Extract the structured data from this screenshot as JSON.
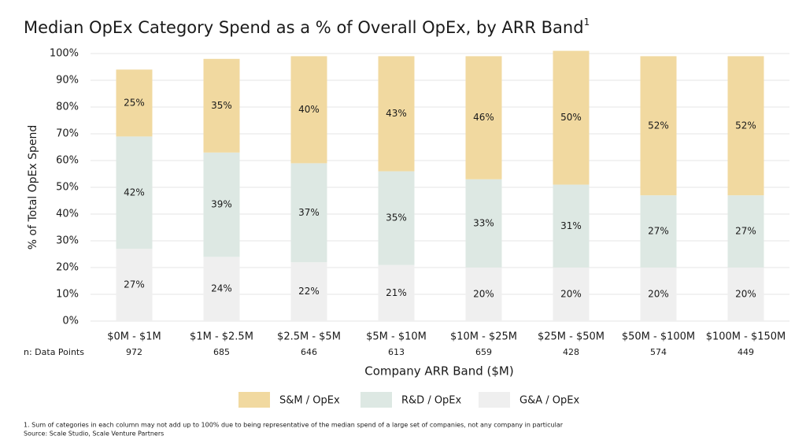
{
  "chart_data": {
    "type": "stacked_bar",
    "title": "Median OpEx Category Spend as a % of Overall OpEx, by ARR Band",
    "title_superscript": "1",
    "x_label": "Company ARR Band ($M)",
    "y_label": "% of Total OpEx Spend",
    "categories": [
      "$0M - $1M",
      "$1M - $2.5M",
      "$2.5M - $5M",
      "$5M - $10M",
      "$10M - $25M",
      "$25M - $50M",
      "$50M - $100M",
      "$100M - $150M"
    ],
    "data_points": {
      "label": "n: Data Points",
      "values": [
        972,
        685,
        646,
        613,
        659,
        428,
        574,
        449
      ]
    },
    "series": [
      {
        "name": "S&M / OpEx",
        "color": "#f1d9a0",
        "values": [
          25,
          35,
          40,
          43,
          46,
          50,
          52,
          52
        ],
        "value_labels": [
          "25%",
          "35%",
          "40%",
          "43%",
          "46%",
          "50%",
          "52%",
          "52%"
        ]
      },
      {
        "name": "R&D / OpEx",
        "color": "#dde8e3",
        "values": [
          42,
          39,
          37,
          35,
          33,
          31,
          27,
          27
        ],
        "value_labels": [
          "42%",
          "39%",
          "37%",
          "35%",
          "33%",
          "31%",
          "27%",
          "27%"
        ]
      },
      {
        "name": "G&A / OpEx",
        "color": "#efefef",
        "values": [
          27,
          24,
          22,
          21,
          20,
          20,
          20,
          20
        ],
        "value_labels": [
          "27%",
          "24%",
          "22%",
          "21%",
          "20%",
          "20%",
          "20%",
          "20%"
        ]
      }
    ],
    "ylim": [
      0,
      100
    ],
    "yticks": [
      {
        "value": 0,
        "label": "0%"
      },
      {
        "value": 10,
        "label": "10%"
      },
      {
        "value": 20,
        "label": "20%"
      },
      {
        "value": 30,
        "label": "30%"
      },
      {
        "value": 40,
        "label": "40%"
      },
      {
        "value": 50,
        "label": "50%"
      },
      {
        "value": 60,
        "label": "60%"
      },
      {
        "value": 70,
        "label": "70%"
      },
      {
        "value": 80,
        "label": "80%"
      },
      {
        "value": 90,
        "label": "90%"
      },
      {
        "value": 100,
        "label": "100%"
      }
    ],
    "grid": true,
    "legend": "bottom",
    "footnote": "1. Sum of categories in each column may not add up to 100% due to being representative of the median spend of a large set of companies, not any company in particular",
    "source": "Source: Scale Studio, Scale Venture Partners"
  }
}
